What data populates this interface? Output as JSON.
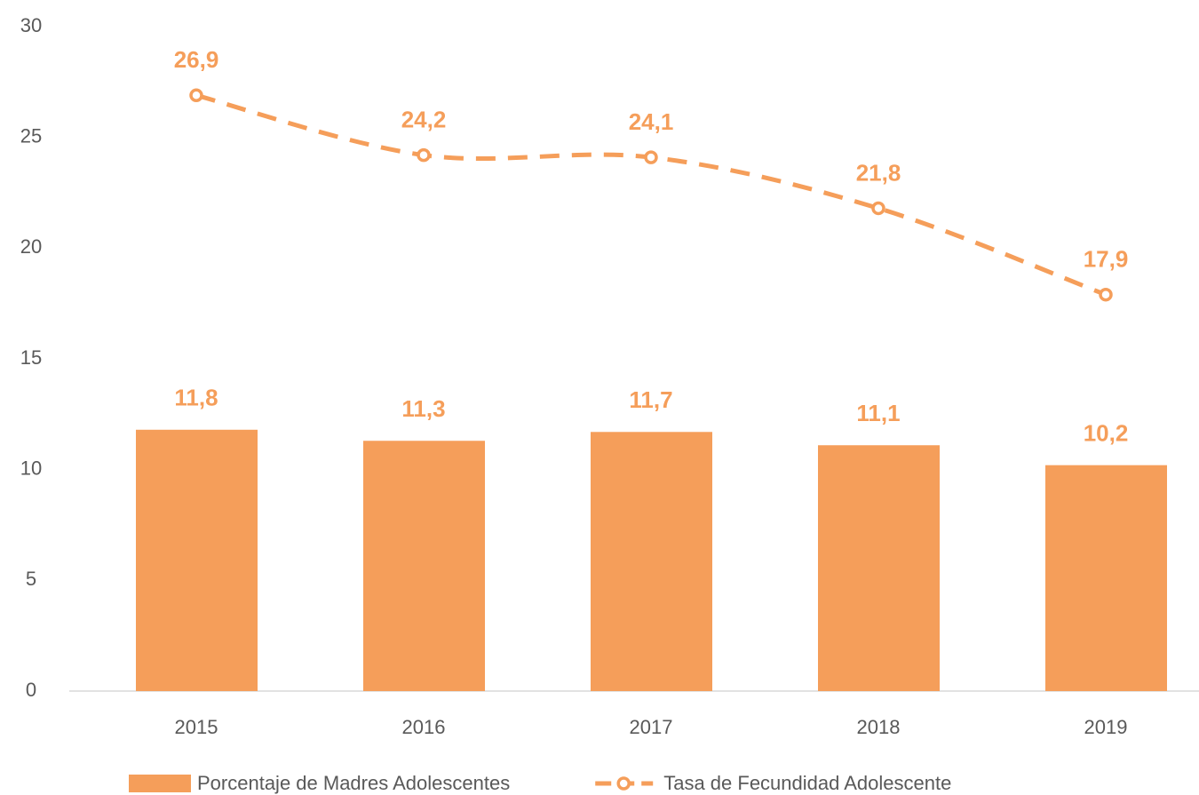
{
  "chart_data": {
    "type": "bar",
    "categories": [
      "2015",
      "2016",
      "2017",
      "2018",
      "2019"
    ],
    "series": [
      {
        "name": "Porcentaje de Madres Adolescentes",
        "type": "bar",
        "color": "#f59e5a",
        "values": [
          11.8,
          11.3,
          11.7,
          11.1,
          10.2
        ],
        "value_labels": [
          "11,8",
          "11,3",
          "11,7",
          "11,1",
          "10,2"
        ]
      },
      {
        "name": "Tasa de Fecundidad Adolescente",
        "type": "line",
        "color": "#f59e5a",
        "values": [
          26.9,
          24.2,
          24.1,
          21.8,
          17.9
        ],
        "value_labels": [
          "26,9",
          "24,2",
          "24,1",
          "21,8",
          "17,9"
        ]
      }
    ],
    "ylim": [
      0,
      30
    ],
    "yticks": [
      0,
      5,
      10,
      15,
      20,
      25,
      30
    ],
    "grid": false,
    "legend": "bottom"
  }
}
